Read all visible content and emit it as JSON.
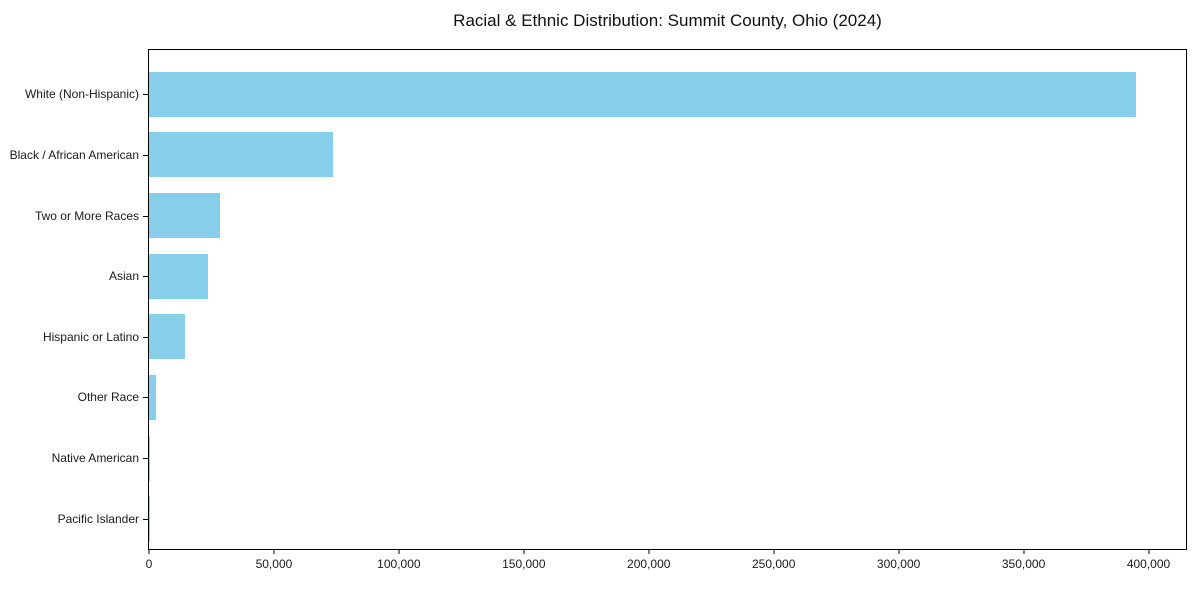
{
  "chart_data": {
    "type": "bar",
    "orientation": "horizontal",
    "title": "Racial & Ethnic Distribution: Summit County, Ohio (2024)",
    "categories": [
      "White (Non-Hispanic)",
      "Black / African American",
      "Two or More Races",
      "Asian",
      "Hispanic or Latino",
      "Other Race",
      "Native American",
      "Pacific Islander"
    ],
    "values": [
      395000,
      73700,
      28600,
      23600,
      14300,
      2900,
      500,
      150
    ],
    "xlabel": "",
    "ylabel": "",
    "xlim": [
      0,
      415000
    ],
    "xticks": [
      0,
      50000,
      100000,
      150000,
      200000,
      250000,
      300000,
      350000,
      400000
    ],
    "xtick_labels": [
      "0",
      "50,000",
      "100,000",
      "150,000",
      "200,000",
      "250,000",
      "300,000",
      "350,000",
      "400,000"
    ],
    "bar_color": "#87CEEB",
    "axis_color": "#000000",
    "text_color": "#1a1a1a",
    "background_color": "#ffffff",
    "grid": false,
    "legend": "none"
  }
}
